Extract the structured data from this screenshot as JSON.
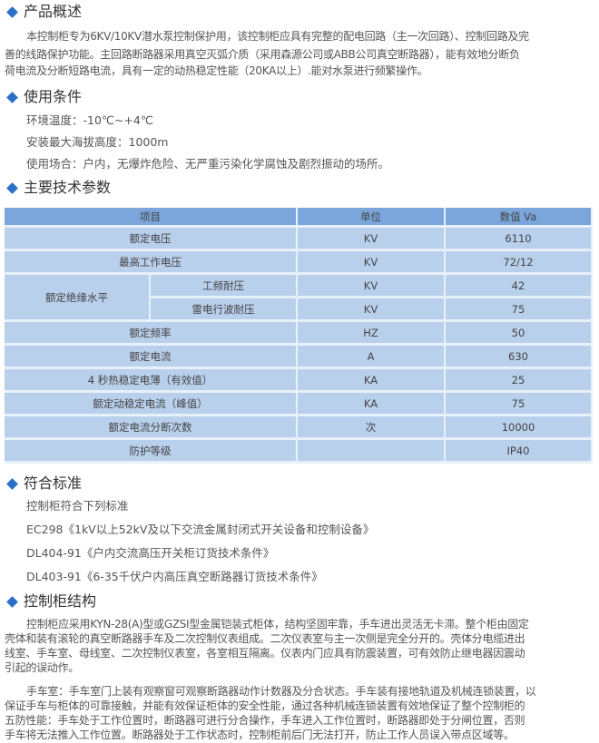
{
  "sections": {
    "overview": {
      "title": "产品概述",
      "lines": [
        "本控制柜专为6KV/10KV潜水泵控制保护用，该控制柜应具有完整的配电回路（主一次回路）、控制回路及完",
        "善的线路保护功能。主回路断路器采用真空灭弧介质（采用森源公司或ABB公司真空断路器），能有效地分断负",
        "荷电流及分断短路电流，具有一定的动热稳定性能（20KA以上）.能对水泵进行频繁操作。"
      ]
    },
    "conditions": {
      "title": "使用条件",
      "items": [
        "环境温度：-10℃~+4℃",
        "安装最大海拔高度：1000m",
        "使用场合：户内，无爆炸危险、无严重污染化学腐蚀及剧烈振动的场所。"
      ]
    },
    "params": {
      "title": "主要技术参数"
    },
    "standards": {
      "title": "符合标准",
      "items": [
        "控制柜符合下列标准",
        "EC298《1kV以上52kV及以下交流金属封闭式开关设备和控制设备》",
        "DL404-91《户内交流高压开关柜订货技术条件》",
        "DL403-91《6-35千伏户内高压真空断路器订货技术条件》"
      ]
    },
    "structure": {
      "title": "控制柜结构",
      "para1": [
        "控制柜应采用KYN-28(A)型或GZSI型金属铠装式柜体，结构坚固牢靠，手车进出灵活无卡滞。整个柜由固定",
        "壳体和装有滚轮的真空断路器手车及二次控制仪表组成。二次仪表室与主一次侧是完全分开的。壳体分电缆进出",
        "线室、手车室、母线室、二次控制仪表室，各室相互隔离。仪表内门应具有防震装置，可有效防止继电器因震动",
        "引起的误动作。"
      ],
      "para2": [
        "手车室：手车室门上装有观察窗可观察断路器动作计数器及分合状态。手车装有接地轨道及机械连锁装置，以",
        "保证手车与柜体的可靠接触，并能有效保证柜体的安全性能，通过各种机械连锁装置有效地保证了整个控制柜的",
        "五防性能：手车处于工作位置时，断路器可进行分合操作，手车进入工作位置时，断路器即处于分闸位置，否则",
        "手车将无法推入工作位置。断路器处于工作状态时，控制柜前后门无法打开，防止工作人员误入带点区域等。"
      ]
    }
  },
  "table": {
    "headers": [
      "项目",
      "单位",
      "数值 Va"
    ],
    "rows": [
      {
        "item": "额定电压",
        "unit": "KV",
        "value": "6110"
      },
      {
        "item": "最高工作电压",
        "unit": "KV",
        "value": "72/12"
      },
      {
        "group": "额定绝缘水平",
        "item": "工频耐压",
        "unit": "KV",
        "value": "42"
      },
      {
        "item": "雷电行波耐压",
        "unit": "KV",
        "value": "75"
      },
      {
        "item": "额定频率",
        "unit": "HZ",
        "value": "50"
      },
      {
        "item": "额定电流",
        "unit": "A",
        "value": "630"
      },
      {
        "item": "4 秒热稳定电薄（有效值）",
        "unit": "KA",
        "value": "25"
      },
      {
        "item": "额定动稳定电流（峰值）",
        "unit": "KA",
        "value": "75"
      },
      {
        "item": "额定电流分断次数",
        "unit": "次",
        "value": "10000"
      },
      {
        "item": "防护等级",
        "unit": "",
        "value": "IP40"
      }
    ]
  },
  "colors": {
    "accent": "#2a6fc9",
    "table_header": "#7aa6dc",
    "table_row": "#b9d0ec"
  }
}
